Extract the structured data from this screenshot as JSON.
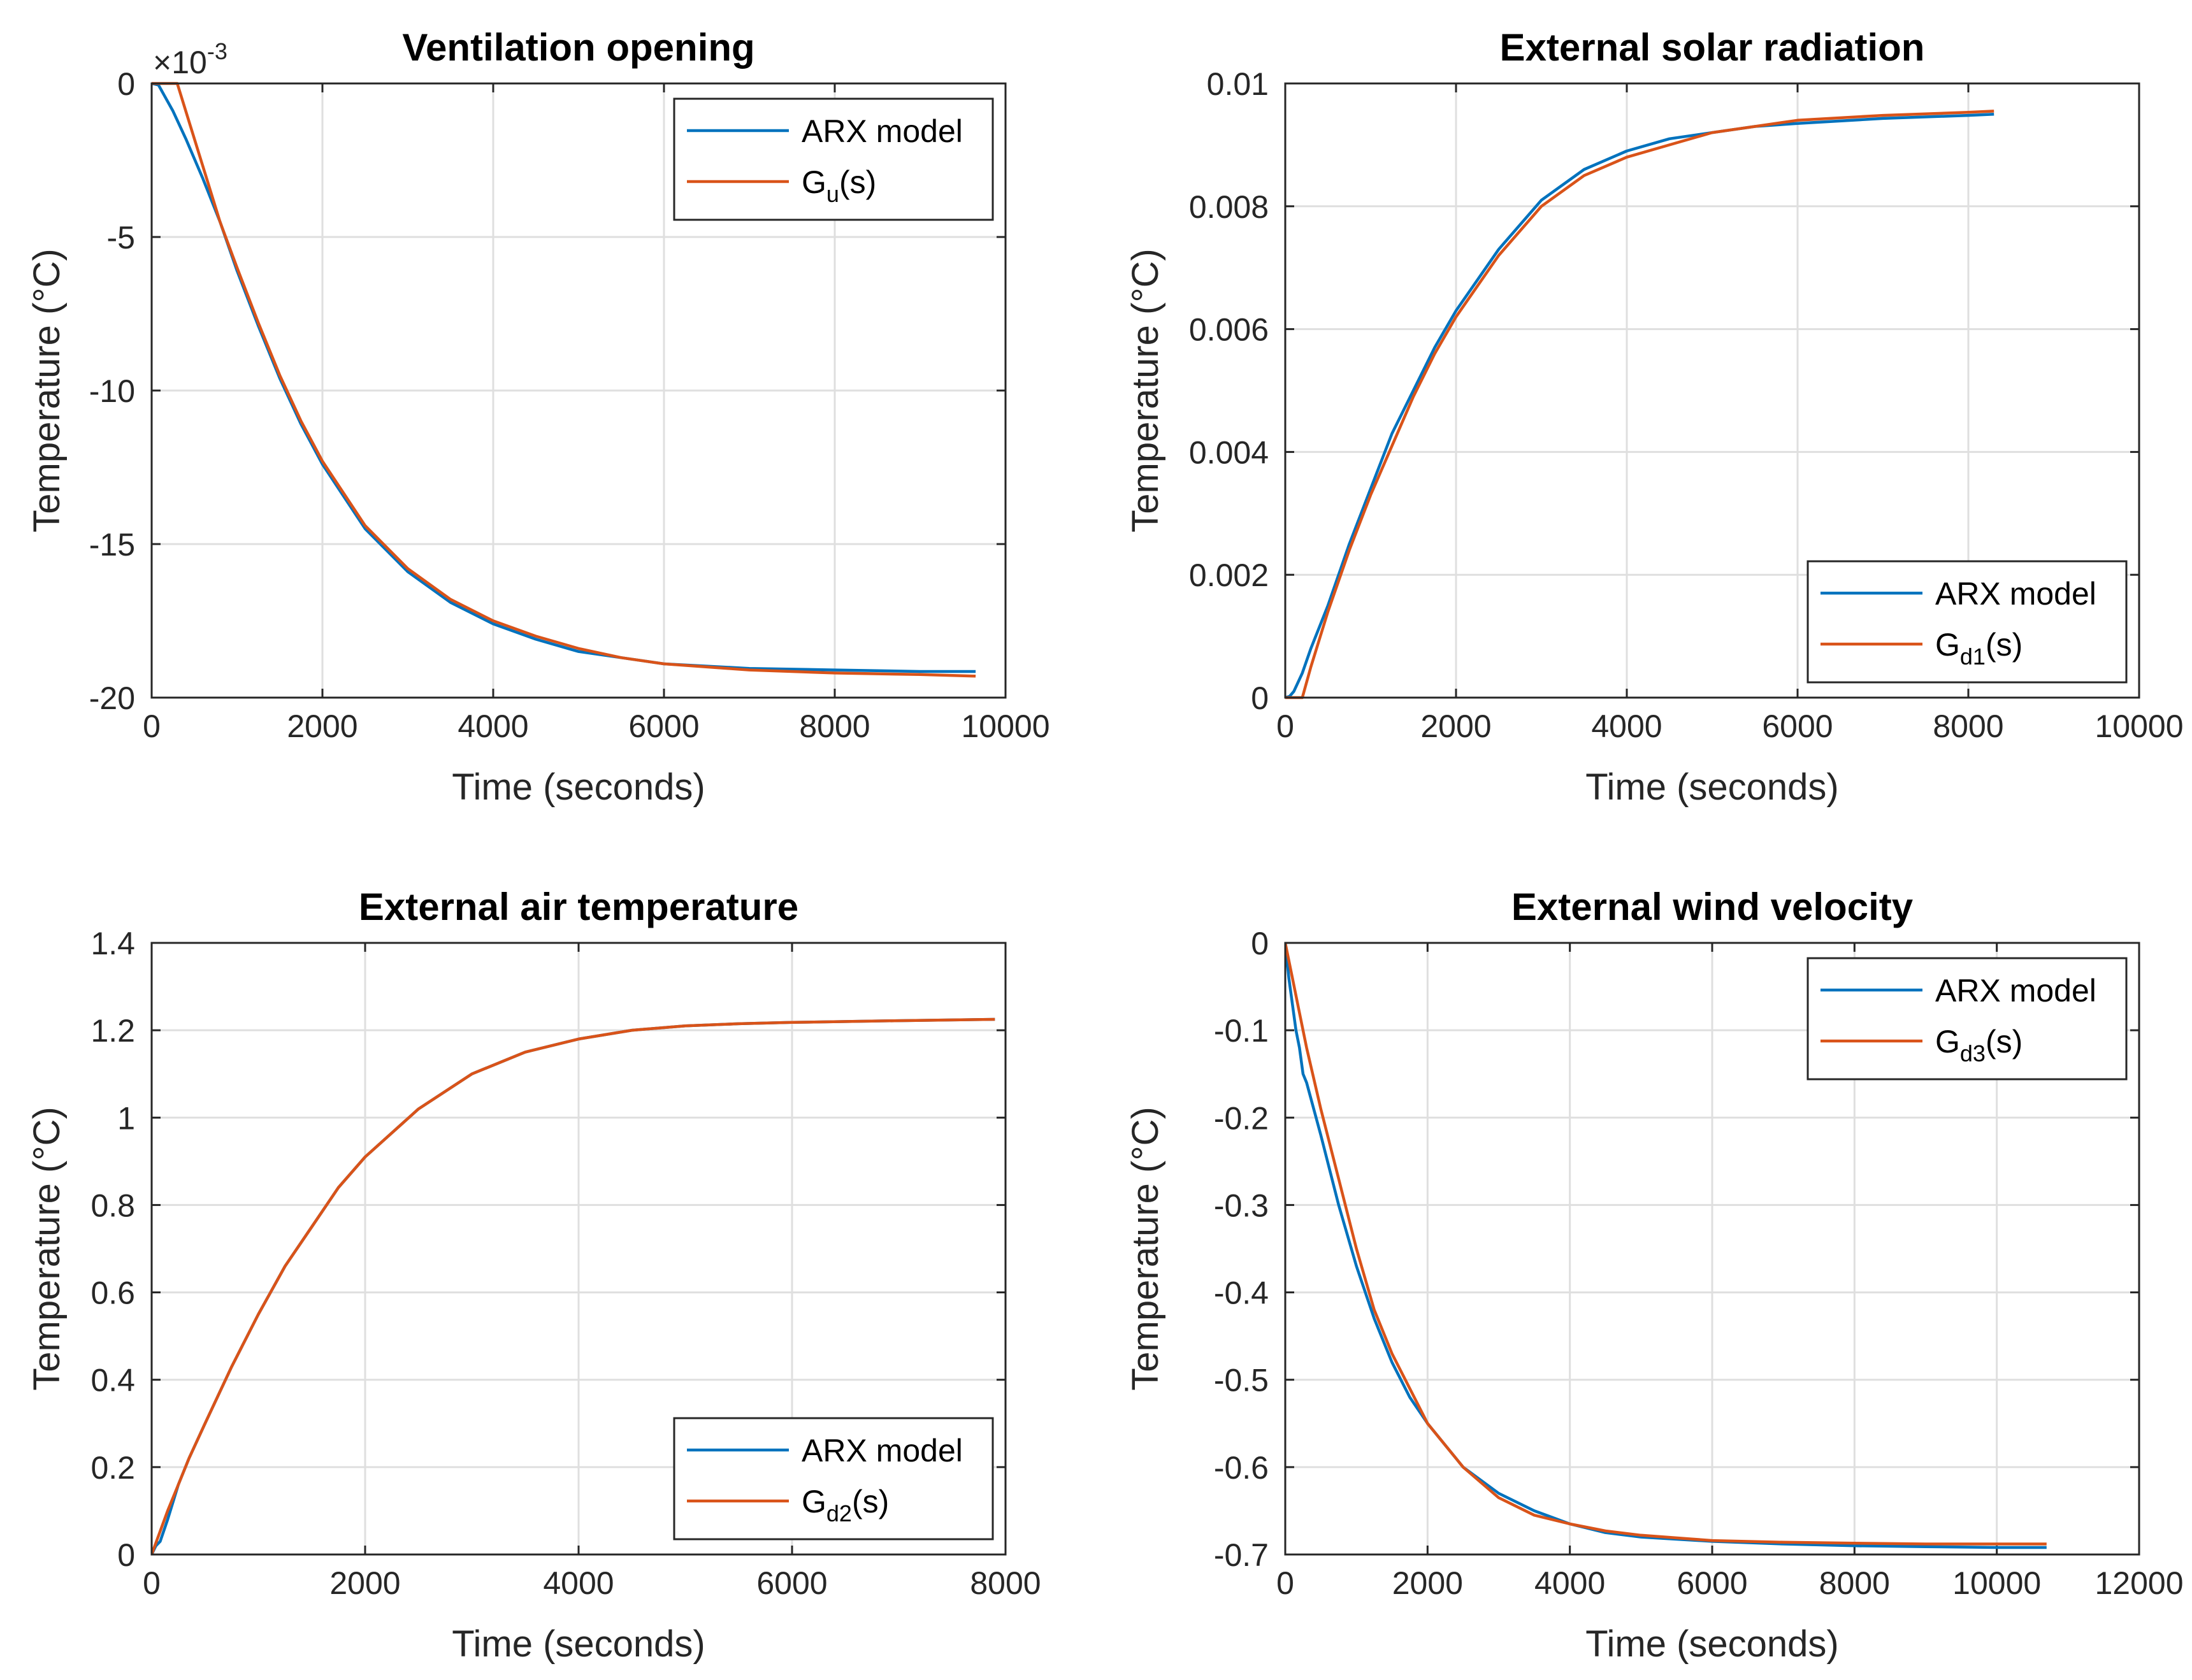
{
  "colors": {
    "arx": "#0072bd",
    "model": "#d95319"
  },
  "chart_data": [
    {
      "type": "line",
      "title": "Ventilation opening",
      "xlabel": "Time (seconds)",
      "ylabel": "Temperature (°C)",
      "xlim": [
        0,
        10000
      ],
      "ylim": [
        -20,
        0
      ],
      "xticks": [
        0,
        2000,
        4000,
        6000,
        8000,
        10000
      ],
      "yticks": [
        -20,
        -15,
        -10,
        -5,
        0
      ],
      "xtick_labels": [
        "0",
        "2000",
        "4000",
        "6000",
        "8000",
        "10000"
      ],
      "ytick_labels": [
        "-20",
        "-15",
        "-10",
        "-5",
        "0"
      ],
      "exponent_label": "×10",
      "exponent_power": "-3",
      "legend_loc": "top-right",
      "series": [
        {
          "name": "ARX model",
          "legend_main": "ARX model",
          "legend_sub": "",
          "legend_tail": "",
          "color": "#0072bd",
          "x": [
            0,
            80,
            150,
            250,
            400,
            600,
            800,
            1000,
            1250,
            1500,
            1750,
            2000,
            2500,
            3000,
            3500,
            4000,
            4500,
            5000,
            5500,
            6000,
            7000,
            8000,
            9000,
            9650
          ],
          "y": [
            0,
            -0.05,
            -0.4,
            -0.9,
            -1.8,
            -3.1,
            -4.5,
            -6.1,
            -7.9,
            -9.6,
            -11.1,
            -12.4,
            -14.5,
            -15.9,
            -16.9,
            -17.6,
            -18.1,
            -18.5,
            -18.7,
            -18.9,
            -19.05,
            -19.1,
            -19.15,
            -19.15
          ]
        },
        {
          "name": "G_u(s)",
          "legend_main": "G",
          "legend_sub": "u",
          "legend_tail": "(s)",
          "color": "#d95319",
          "x": [
            0,
            300,
            400,
            600,
            800,
            1000,
            1250,
            1500,
            1750,
            2000,
            2500,
            3000,
            3500,
            4000,
            4500,
            5000,
            5500,
            6000,
            7000,
            8000,
            9000,
            9650
          ],
          "y": [
            0,
            0,
            -0.9,
            -2.7,
            -4.5,
            -6.0,
            -7.8,
            -9.5,
            -11.0,
            -12.3,
            -14.4,
            -15.8,
            -16.8,
            -17.5,
            -18.0,
            -18.4,
            -18.7,
            -18.9,
            -19.1,
            -19.2,
            -19.25,
            -19.3
          ]
        }
      ]
    },
    {
      "type": "line",
      "title": "External solar radiation",
      "xlabel": "Time (seconds)",
      "ylabel": "Temperature (°C)",
      "xlim": [
        0,
        10000
      ],
      "ylim": [
        0,
        0.01
      ],
      "xticks": [
        0,
        2000,
        4000,
        6000,
        8000,
        10000
      ],
      "yticks": [
        0,
        0.002,
        0.004,
        0.006,
        0.008,
        0.01
      ],
      "xtick_labels": [
        "0",
        "2000",
        "4000",
        "6000",
        "8000",
        "10000"
      ],
      "ytick_labels": [
        "0",
        "0.002",
        "0.004",
        "0.006",
        "0.008",
        "0.01"
      ],
      "legend_loc": "bottom-right",
      "series": [
        {
          "name": "ARX model",
          "legend_main": "ARX model",
          "legend_sub": "",
          "legend_tail": "",
          "color": "#0072bd",
          "x": [
            0,
            50,
            100,
            200,
            300,
            500,
            750,
            1000,
            1250,
            1500,
            1750,
            2000,
            2500,
            3000,
            3500,
            4000,
            4500,
            5000,
            5500,
            6000,
            7000,
            8000,
            8300
          ],
          "y": [
            0,
            2e-05,
            0.0001,
            0.0004,
            0.0008,
            0.0015,
            0.0025,
            0.0034,
            0.0043,
            0.005,
            0.0057,
            0.0063,
            0.0073,
            0.0081,
            0.0086,
            0.0089,
            0.0091,
            0.0092,
            0.0093,
            0.00935,
            0.00943,
            0.00948,
            0.0095
          ]
        },
        {
          "name": "G_d1(s)",
          "legend_main": "G",
          "legend_sub": "d1",
          "legend_tail": "(s)",
          "color": "#d95319",
          "x": [
            0,
            200,
            300,
            500,
            750,
            1000,
            1250,
            1500,
            1750,
            2000,
            2500,
            3000,
            3500,
            4000,
            4500,
            5000,
            5500,
            6000,
            7000,
            8000,
            8300
          ],
          "y": [
            0,
            0,
            0.0005,
            0.0014,
            0.0024,
            0.0033,
            0.0041,
            0.0049,
            0.0056,
            0.0062,
            0.0072,
            0.008,
            0.0085,
            0.0088,
            0.009,
            0.0092,
            0.0093,
            0.0094,
            0.00948,
            0.00953,
            0.00955
          ]
        }
      ]
    },
    {
      "type": "line",
      "title": "External air temperature",
      "xlabel": "Time (seconds)",
      "ylabel": "Temperature (°C)",
      "xlim": [
        0,
        8000
      ],
      "ylim": [
        0,
        1.4
      ],
      "xticks": [
        0,
        2000,
        4000,
        6000,
        8000
      ],
      "yticks": [
        0,
        0.2,
        0.4,
        0.6,
        0.8,
        1,
        1.2,
        1.4
      ],
      "xtick_labels": [
        "0",
        "2000",
        "4000",
        "6000",
        "8000"
      ],
      "ytick_labels": [
        "0",
        "0.2",
        "0.4",
        "0.6",
        "0.8",
        "1",
        "1.2",
        "1.4"
      ],
      "legend_loc": "bottom-right",
      "series": [
        {
          "name": "ARX model",
          "legend_main": "ARX model",
          "legend_sub": "",
          "legend_tail": "",
          "color": "#0072bd",
          "x": [
            0,
            40,
            80,
            150,
            250,
            350,
            500,
            750,
            1000,
            1250,
            1500,
            1750,
            2000,
            2500,
            3000,
            3500,
            4000,
            4500,
            5000,
            5500,
            6000,
            7000,
            7900
          ],
          "y": [
            0,
            0.02,
            0.03,
            0.08,
            0.16,
            0.22,
            0.3,
            0.43,
            0.55,
            0.66,
            0.75,
            0.84,
            0.91,
            1.02,
            1.1,
            1.15,
            1.18,
            1.2,
            1.21,
            1.215,
            1.218,
            1.222,
            1.225
          ]
        },
        {
          "name": "G_d2(s)",
          "legend_main": "G",
          "legend_sub": "d2",
          "legend_tail": "(s)",
          "color": "#d95319",
          "x": [
            0,
            150,
            250,
            350,
            500,
            750,
            1000,
            1250,
            1500,
            1750,
            2000,
            2500,
            3000,
            3500,
            4000,
            4500,
            5000,
            5500,
            6000,
            7000,
            7900
          ],
          "y": [
            0,
            0.1,
            0.16,
            0.22,
            0.3,
            0.43,
            0.55,
            0.66,
            0.75,
            0.84,
            0.91,
            1.02,
            1.1,
            1.15,
            1.18,
            1.2,
            1.21,
            1.215,
            1.218,
            1.222,
            1.225
          ]
        }
      ]
    },
    {
      "type": "line",
      "title": "External wind velocity",
      "xlabel": "Time (seconds)",
      "ylabel": "Temperature (°C)",
      "xlim": [
        0,
        12000
      ],
      "ylim": [
        -0.7,
        0
      ],
      "xticks": [
        0,
        2000,
        4000,
        6000,
        8000,
        10000,
        12000
      ],
      "yticks": [
        -0.7,
        -0.6,
        -0.5,
        -0.4,
        -0.3,
        -0.2,
        -0.1,
        0
      ],
      "xtick_labels": [
        "0",
        "2000",
        "4000",
        "6000",
        "8000",
        "10000",
        "12000"
      ],
      "ytick_labels": [
        "-0.7",
        "-0.6",
        "-0.5",
        "-0.4",
        "-0.3",
        "-0.2",
        "-0.1",
        "0"
      ],
      "legend_loc": "top-right",
      "series": [
        {
          "name": "ARX model",
          "legend_main": "ARX model",
          "legend_sub": "",
          "legend_tail": "",
          "color": "#0072bd",
          "x": [
            0,
            50,
            100,
            150,
            200,
            250,
            300,
            500,
            750,
            1000,
            1250,
            1500,
            1750,
            2000,
            2500,
            3000,
            3500,
            4000,
            4500,
            5000,
            6000,
            7000,
            8000,
            9000,
            10000,
            10700
          ],
          "y": [
            0,
            -0.04,
            -0.07,
            -0.1,
            -0.12,
            -0.15,
            -0.16,
            -0.22,
            -0.3,
            -0.37,
            -0.43,
            -0.48,
            -0.52,
            -0.55,
            -0.6,
            -0.63,
            -0.65,
            -0.665,
            -0.675,
            -0.68,
            -0.685,
            -0.688,
            -0.69,
            -0.691,
            -0.692,
            -0.692
          ]
        },
        {
          "name": "G_d3(s)",
          "legend_main": "G",
          "legend_sub": "d3",
          "legend_tail": "(s)",
          "color": "#d95319",
          "x": [
            0,
            100,
            200,
            300,
            500,
            750,
            1000,
            1250,
            1500,
            1750,
            2000,
            2500,
            3000,
            3500,
            4000,
            4500,
            5000,
            6000,
            7000,
            8000,
            9000,
            10000,
            10700
          ],
          "y": [
            0,
            -0.04,
            -0.08,
            -0.12,
            -0.19,
            -0.27,
            -0.35,
            -0.42,
            -0.47,
            -0.51,
            -0.55,
            -0.6,
            -0.635,
            -0.655,
            -0.665,
            -0.673,
            -0.678,
            -0.684,
            -0.686,
            -0.687,
            -0.688,
            -0.688,
            -0.688
          ]
        }
      ]
    }
  ]
}
